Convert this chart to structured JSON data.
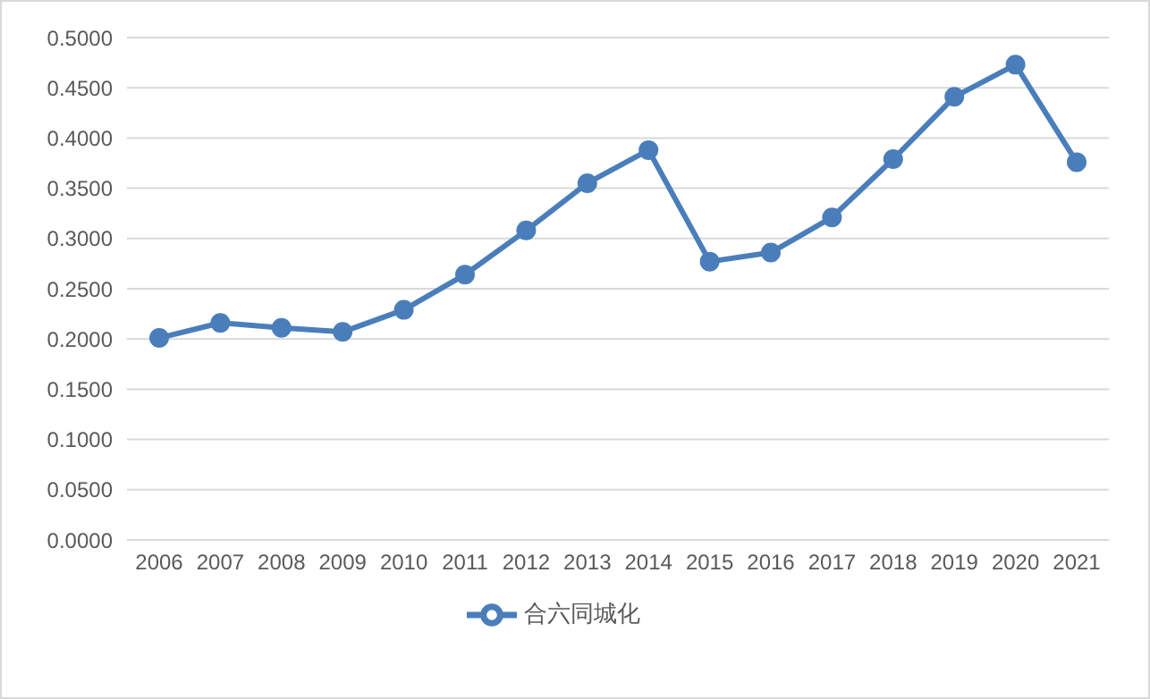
{
  "chart_data": {
    "type": "line",
    "categories": [
      "2006",
      "2007",
      "2008",
      "2009",
      "2010",
      "2011",
      "2012",
      "2013",
      "2014",
      "2015",
      "2016",
      "2017",
      "2018",
      "2019",
      "2020",
      "2021"
    ],
    "series": [
      {
        "name": "合六同城化",
        "color": "#4a7ebb",
        "values": [
          0.201,
          0.216,
          0.211,
          0.207,
          0.229,
          0.264,
          0.308,
          0.355,
          0.388,
          0.277,
          0.286,
          0.321,
          0.379,
          0.441,
          0.473,
          0.376
        ]
      }
    ],
    "ylim": [
      0,
      0.5
    ],
    "yticks": [
      {
        "value": 0,
        "label": "0.0000"
      },
      {
        "value": 0.05,
        "label": "0.0500"
      },
      {
        "value": 0.1,
        "label": "0.1000"
      },
      {
        "value": 0.15,
        "label": "0.1500"
      },
      {
        "value": 0.2,
        "label": "0.2000"
      },
      {
        "value": 0.25,
        "label": "0.2500"
      },
      {
        "value": 0.3,
        "label": "0.3000"
      },
      {
        "value": 0.35,
        "label": "0.3500"
      },
      {
        "value": 0.4,
        "label": "0.4000"
      },
      {
        "value": 0.45,
        "label": "0.4500"
      },
      {
        "value": 0.5,
        "label": "0.5000"
      }
    ],
    "grid": "y",
    "legend": "bottom",
    "marker": "circle",
    "line_style": "solid"
  }
}
